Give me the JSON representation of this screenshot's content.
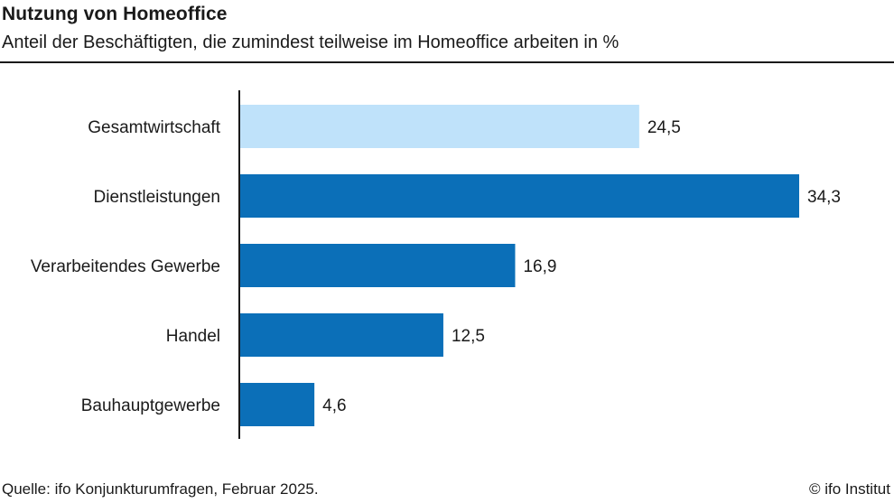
{
  "header": {
    "title": "Nutzung von Homeoffice",
    "subtitle": "Anteil der Beschäftigten, die zumindest teilweise im Homeoffice arbeiten in %"
  },
  "footer": {
    "source": "Quelle: ifo Konjunkturumfragen, Februar 2025.",
    "credit": "© ifo Institut"
  },
  "colors": {
    "highlight": "#bfe2fa",
    "primary": "#0b6fb8",
    "axis": "#1a1a1a"
  },
  "chart_data": {
    "type": "bar",
    "orientation": "horizontal",
    "title": "Nutzung von Homeoffice",
    "subtitle": "Anteil der Beschäftigten, die zumindest teilweise im Homeoffice arbeiten in %",
    "categories": [
      "Gesamtwirtschaft",
      "Dienstleistungen",
      "Verarbeitendes Gewerbe",
      "Handel",
      "Bauhauptgewerbe"
    ],
    "values": [
      24.5,
      34.3,
      16.9,
      12.5,
      4.6
    ],
    "value_labels": [
      "24,5",
      "34,3",
      "16,9",
      "12,5",
      "4,6"
    ],
    "highlight_index": 0,
    "xlim": [
      0,
      35
    ],
    "grid": false,
    "legend": "none"
  }
}
